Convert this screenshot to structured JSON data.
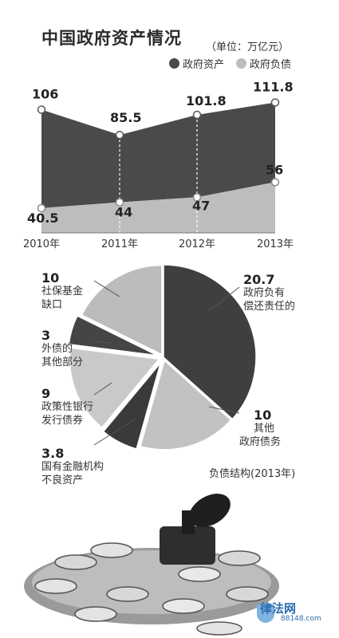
{
  "header": {
    "title": "中国政府资产情况",
    "unit": "（单位：万亿元）"
  },
  "legend": [
    {
      "label": "政府资产",
      "color": "#4a4a4a"
    },
    {
      "label": "政府负债",
      "color": "#bdbdbd"
    }
  ],
  "chart_data": [
    {
      "type": "area",
      "title": "中国政府资产情况",
      "unit": "万亿元",
      "categories": [
        "2010年",
        "2011年",
        "2012年",
        "2013年"
      ],
      "series": [
        {
          "name": "政府资产",
          "values": [
            106,
            85.5,
            101.8,
            111.8
          ],
          "labels": [
            "106",
            "85.5",
            "101.8",
            "111.8"
          ],
          "color": "#4a4a4a"
        },
        {
          "name": "政府负债",
          "values": [
            40.5,
            44,
            47,
            56
          ],
          "labels": [
            "40.5",
            "44",
            "47",
            "56"
          ],
          "color": "#bdbdbd"
        }
      ],
      "ylim": [
        0,
        120
      ],
      "grid": false,
      "legend": "top-right"
    },
    {
      "type": "pie",
      "title": "负债结构(2013年)",
      "slices": [
        {
          "label": "政府负有偿还责任的",
          "value": 20.7,
          "value_text": "20.7",
          "color": "#3f3f3f"
        },
        {
          "label": "其他政府债务",
          "value": 10,
          "value_text": "10",
          "color": "#c2c2c2"
        },
        {
          "label": "国有金融机构不良资产",
          "value": 3.8,
          "value_text": "3.8",
          "color": "#3a3a3a"
        },
        {
          "label": "政策性银行发行债券",
          "value": 9,
          "value_text": "9",
          "color": "#c9c9c9"
        },
        {
          "label": "外债的其他部分",
          "value": 3,
          "value_text": "3",
          "color": "#454545"
        },
        {
          "label": "社保基金缺口",
          "value": 10,
          "value_text": "10",
          "color": "#bcbcbc"
        }
      ]
    }
  ],
  "callouts": [
    {
      "value": "20.7",
      "lines": [
        "政府负有",
        "偿还责任的"
      ]
    },
    {
      "value": "10",
      "lines": [
        "其他",
        "政府债务"
      ]
    },
    {
      "value": "3.8",
      "lines": [
        "国有金融机构",
        "不良资产"
      ]
    },
    {
      "value": "9",
      "lines": [
        "政策性银行",
        "发行债券"
      ]
    },
    {
      "value": "3",
      "lines": [
        "外债的",
        "其他部分"
      ]
    },
    {
      "value": "10",
      "lines": [
        "社保基金",
        "缺口"
      ]
    }
  ],
  "pie_caption": "负债结构(2013年)",
  "watermark": {
    "brand": "律法网",
    "url": "88148.com"
  }
}
